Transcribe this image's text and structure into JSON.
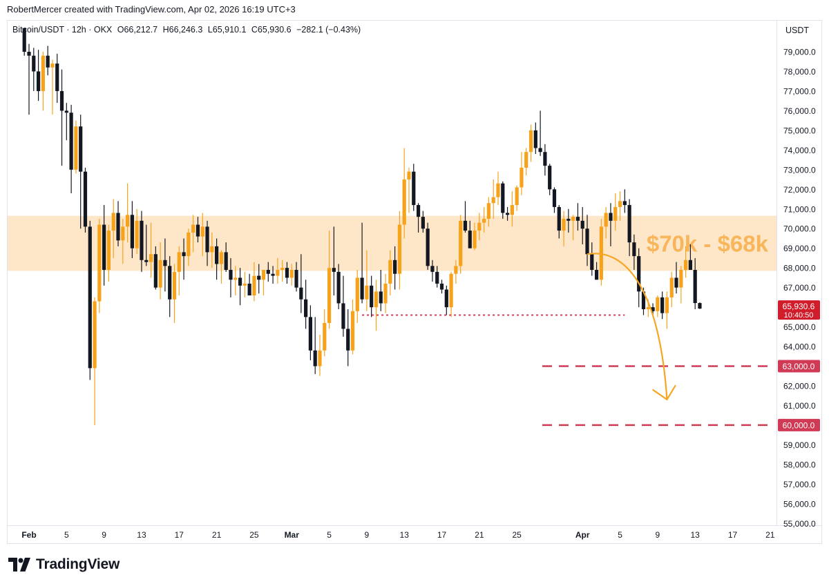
{
  "header": {
    "credit": "RobertMercer created with TradingView.com, Apr 02, 2026 16:19 UTC+3"
  },
  "symbol": {
    "name": "Bitcoin/USDT · 12h · OKX",
    "open": "O66,212.7",
    "high": "H66,246.3",
    "low": "L65,910.1",
    "close": "C65,930.6",
    "change": "−282.1 (−0.43%)"
  },
  "unit": "USDT",
  "brand": {
    "name": "TradingView"
  },
  "colors": {
    "up": "#f7a21b",
    "down": "#131722",
    "zone": "#fde7c8",
    "zone_text": "#f8b55a",
    "level": "#d13a55",
    "arrow": "#f5a623",
    "last_price_bg": "#d01c2b"
  },
  "chart_data": {
    "type": "candlestick",
    "title": "Bitcoin/USDT · 12h · OKX",
    "ylim": [
      54700,
      80200
    ],
    "y_ticks": [
      {
        "value": 79000,
        "label": "79,000.0"
      },
      {
        "value": 78000,
        "label": "78,000.0"
      },
      {
        "value": 77000,
        "label": "77,000.0"
      },
      {
        "value": 76000,
        "label": "76,000.0"
      },
      {
        "value": 75000,
        "label": "75,000.0"
      },
      {
        "value": 74000,
        "label": "74,000.0"
      },
      {
        "value": 73000,
        "label": "73,000.0"
      },
      {
        "value": 72000,
        "label": "72,000.0"
      },
      {
        "value": 71000,
        "label": "71,000.0"
      },
      {
        "value": 70000,
        "label": "70,000.0"
      },
      {
        "value": 69000,
        "label": "69,000.0"
      },
      {
        "value": 68000,
        "label": "68,000.0"
      },
      {
        "value": 67000,
        "label": "67,000.0"
      },
      {
        "value": 65000,
        "label": "65,000.0"
      },
      {
        "value": 64000,
        "label": "64,000.0"
      },
      {
        "value": 62000,
        "label": "62,000.0"
      },
      {
        "value": 61000,
        "label": "61,000.0"
      },
      {
        "value": 59000,
        "label": "59,000.0"
      },
      {
        "value": 58000,
        "label": "58,000.0"
      },
      {
        "value": 57000,
        "label": "57,000.0"
      },
      {
        "value": 56000,
        "label": "56,000.0"
      },
      {
        "value": 55000,
        "label": "55,000.0"
      }
    ],
    "x_ticks": [
      {
        "date": "2026-02-01",
        "label": "Feb",
        "bold": true
      },
      {
        "date": "2026-02-05",
        "label": "5"
      },
      {
        "date": "2026-02-09",
        "label": "9"
      },
      {
        "date": "2026-02-13",
        "label": "13"
      },
      {
        "date": "2026-02-17",
        "label": "17"
      },
      {
        "date": "2026-02-21",
        "label": "21"
      },
      {
        "date": "2026-02-25",
        "label": "25"
      },
      {
        "date": "2026-03-01",
        "label": "Mar",
        "bold": true
      },
      {
        "date": "2026-03-05",
        "label": "5"
      },
      {
        "date": "2026-03-09",
        "label": "9"
      },
      {
        "date": "2026-03-13",
        "label": "13"
      },
      {
        "date": "2026-03-17",
        "label": "17"
      },
      {
        "date": "2026-03-21",
        "label": "21"
      },
      {
        "date": "2026-03-25",
        "label": "25"
      },
      {
        "date": "2026-04-01",
        "label": "Apr",
        "bold": true
      },
      {
        "date": "2026-04-05",
        "label": "5"
      },
      {
        "date": "2026-04-09",
        "label": "9"
      },
      {
        "date": "2026-04-13",
        "label": "13"
      },
      {
        "date": "2026-04-17",
        "label": "17"
      },
      {
        "date": "2026-04-21",
        "label": "21"
      }
    ],
    "candles_start": "2026-01-31 12:00",
    "candle_interval": "12h",
    "candles": [
      [
        80200,
        80200,
        78800,
        79000
      ],
      [
        79000,
        79400,
        75800,
        78800
      ],
      [
        78800,
        79200,
        77000,
        78000
      ],
      [
        78000,
        79100,
        76500,
        77000
      ],
      [
        77000,
        79000,
        76000,
        78800
      ],
      [
        78800,
        79300,
        77800,
        78200
      ],
      [
        78200,
        78600,
        75800,
        78400
      ],
      [
        78400,
        78900,
        76400,
        77000
      ],
      [
        77000,
        78100,
        73200,
        76000
      ],
      [
        76000,
        76400,
        74500,
        75900
      ],
      [
        75900,
        76300,
        71800,
        73000
      ],
      [
        73000,
        75500,
        72800,
        75200
      ],
      [
        75200,
        75800,
        70000,
        72900
      ],
      [
        72900,
        73100,
        69800,
        70100
      ],
      [
        70100,
        70400,
        62300,
        62900
      ],
      [
        62900,
        66500,
        60000,
        66300
      ],
      [
        66300,
        70500,
        65700,
        70200
      ],
      [
        70200,
        71200,
        67100,
        67900
      ],
      [
        67900,
        70200,
        67300,
        69900
      ],
      [
        69900,
        71500,
        68500,
        70800
      ],
      [
        70800,
        71400,
        69100,
        69400
      ],
      [
        69400,
        70500,
        68200,
        70100
      ],
      [
        70100,
        72300,
        69300,
        70700
      ],
      [
        70700,
        71400,
        68500,
        69000
      ],
      [
        69000,
        71000,
        68700,
        70400
      ],
      [
        70400,
        70900,
        67800,
        68400
      ],
      [
        68400,
        70200,
        68100,
        68300
      ],
      [
        68300,
        70300,
        67500,
        68700
      ],
      [
        68700,
        69100,
        66900,
        67000
      ],
      [
        67000,
        69300,
        66400,
        68400
      ],
      [
        68400,
        69500,
        66800,
        68100
      ],
      [
        68100,
        68600,
        65500,
        66400
      ],
      [
        66400,
        68200,
        65200,
        67800
      ],
      [
        67800,
        69100,
        66600,
        68800
      ],
      [
        68800,
        69500,
        67400,
        68600
      ],
      [
        68600,
        70000,
        68100,
        69800
      ],
      [
        69800,
        70700,
        68800,
        70200
      ],
      [
        70200,
        70600,
        69300,
        69600
      ],
      [
        69600,
        70800,
        68600,
        70100
      ],
      [
        70100,
        70400,
        68100,
        68800
      ],
      [
        68800,
        69800,
        68000,
        69100
      ],
      [
        69100,
        69500,
        67400,
        68200
      ],
      [
        68200,
        68900,
        67200,
        68800
      ],
      [
        68800,
        69300,
        67800,
        67900
      ],
      [
        67900,
        68500,
        66500,
        67400
      ],
      [
        67400,
        68100,
        66600,
        67500
      ],
      [
        67500,
        68000,
        66100,
        67100
      ],
      [
        67100,
        67800,
        66500,
        67200
      ],
      [
        67200,
        67700,
        66700,
        66600
      ],
      [
        66600,
        68300,
        66300,
        67600
      ],
      [
        67600,
        68200,
        66700,
        67400
      ],
      [
        67400,
        67900,
        66600,
        67900
      ],
      [
        67900,
        68300,
        67300,
        67700
      ],
      [
        67700,
        68100,
        67200,
        67600
      ],
      [
        67600,
        68500,
        67200,
        67900
      ],
      [
        67900,
        68400,
        67300,
        68000
      ],
      [
        68000,
        68300,
        67200,
        67500
      ],
      [
        67500,
        68200,
        67100,
        67900
      ],
      [
        67900,
        68300,
        66800,
        67000
      ],
      [
        67000,
        68700,
        65700,
        66400
      ],
      [
        66400,
        67400,
        64900,
        65500
      ],
      [
        65500,
        66100,
        63300,
        63800
      ],
      [
        63800,
        65500,
        62600,
        63000
      ],
      [
        63000,
        64600,
        62500,
        63800
      ],
      [
        63800,
        65900,
        63500,
        65200
      ],
      [
        65200,
        69900,
        64900,
        68000
      ],
      [
        68000,
        70100,
        66600,
        67800
      ],
      [
        67800,
        68200,
        65900,
        66200
      ],
      [
        66200,
        67600,
        64500,
        64900
      ],
      [
        64900,
        65900,
        63000,
        63800
      ],
      [
        63800,
        66400,
        63600,
        65800
      ],
      [
        65800,
        67900,
        65200,
        67500
      ],
      [
        67500,
        70300,
        66200,
        66400
      ],
      [
        66400,
        68900,
        65800,
        67100
      ],
      [
        67100,
        67600,
        65500,
        66000
      ],
      [
        66000,
        67400,
        64800,
        66800
      ],
      [
        66800,
        67900,
        65800,
        66200
      ],
      [
        66200,
        67700,
        65700,
        67200
      ],
      [
        67200,
        68900,
        66600,
        68400
      ],
      [
        68400,
        69100,
        66900,
        67700
      ],
      [
        67700,
        70900,
        66900,
        70200
      ],
      [
        70200,
        74100,
        69500,
        72500
      ],
      [
        72500,
        73100,
        70800,
        72900
      ],
      [
        72900,
        73300,
        70900,
        71200
      ],
      [
        71200,
        71300,
        69800,
        70600
      ],
      [
        70600,
        70900,
        69800,
        70000
      ],
      [
        70000,
        70300,
        67900,
        68100
      ],
      [
        68100,
        68400,
        67300,
        67800
      ],
      [
        67800,
        68100,
        67000,
        67200
      ],
      [
        67200,
        67400,
        66700,
        66900
      ],
      [
        66900,
        67100,
        65600,
        66000
      ],
      [
        66000,
        67800,
        65500,
        67700
      ],
      [
        67700,
        68400,
        67200,
        68100
      ],
      [
        68100,
        70700,
        67700,
        70400
      ],
      [
        70400,
        71400,
        69800,
        69900
      ],
      [
        69900,
        70400,
        69000,
        69000
      ],
      [
        69000,
        70300,
        68900,
        69900
      ],
      [
        69900,
        70800,
        69400,
        70300
      ],
      [
        70300,
        71100,
        69800,
        70500
      ],
      [
        70500,
        71600,
        70100,
        71300
      ],
      [
        71300,
        72500,
        70500,
        71600
      ],
      [
        71600,
        72900,
        71200,
        72300
      ],
      [
        72300,
        72400,
        70500,
        70800
      ],
      [
        70800,
        71100,
        70400,
        70700
      ],
      [
        70700,
        71900,
        70100,
        71200
      ],
      [
        71200,
        72200,
        70900,
        72100
      ],
      [
        72100,
        73900,
        71700,
        73100
      ],
      [
        73100,
        74100,
        72700,
        73900
      ],
      [
        73900,
        75300,
        73400,
        75000
      ],
      [
        75000,
        75400,
        73800,
        74100
      ],
      [
        74100,
        76000,
        73700,
        73900
      ],
      [
        73900,
        74300,
        72700,
        73200
      ],
      [
        73200,
        73300,
        71700,
        72000
      ],
      [
        72000,
        72100,
        70800,
        71100
      ],
      [
        71100,
        71200,
        69500,
        69900
      ],
      [
        69900,
        70900,
        69100,
        70500
      ],
      [
        70500,
        71000,
        69800,
        70400
      ],
      [
        70400,
        70700,
        69400,
        70600
      ],
      [
        70600,
        71300,
        69900,
        70400
      ],
      [
        70400,
        71100,
        69200,
        70000
      ],
      [
        70000,
        70700,
        68100,
        68700
      ],
      [
        68700,
        69300,
        67600,
        67900
      ],
      [
        67900,
        68300,
        67400,
        67400
      ],
      [
        67400,
        70500,
        67100,
        70100
      ],
      [
        70100,
        71100,
        69500,
        70800
      ],
      [
        70800,
        71300,
        69100,
        70400
      ],
      [
        70400,
        71800,
        69900,
        71100
      ],
      [
        71100,
        71900,
        70400,
        71400
      ],
      [
        71400,
        72000,
        70800,
        71200
      ],
      [
        71200,
        71500,
        68600,
        69300
      ],
      [
        69300,
        69700,
        67900,
        68600
      ],
      [
        68600,
        69000,
        66000,
        66800
      ],
      [
        66800,
        67000,
        65600,
        65900
      ],
      [
        65900,
        66400,
        65500,
        66000
      ],
      [
        66000,
        66200,
        65600,
        65800
      ],
      [
        65800,
        66600,
        65500,
        66500
      ],
      [
        66500,
        66800,
        65400,
        65700
      ],
      [
        65700,
        66800,
        64900,
        66500
      ],
      [
        66500,
        67800,
        66000,
        67500
      ],
      [
        67500,
        68300,
        66700,
        67000
      ],
      [
        67000,
        68100,
        66200,
        67900
      ],
      [
        67900,
        69100,
        67500,
        68400
      ],
      [
        68400,
        69200,
        67900,
        67900
      ],
      [
        67900,
        68500,
        65900,
        66212.7
      ],
      [
        66212.7,
        66246.3,
        65910.1,
        65930.6
      ]
    ],
    "zone": {
      "low": 67850,
      "high": 70650,
      "label": "$70k - $68k"
    },
    "support_line": {
      "value": 65600,
      "from": "2026-03-08 12:00",
      "to": "2026-04-05 12:00"
    },
    "target_levels": [
      {
        "value": 63000,
        "label": "63,000.0"
      },
      {
        "value": 60000,
        "label": "60,000.0"
      }
    ],
    "last_price": {
      "value": 65930.6,
      "label": "65,930.6",
      "countdown": "10:40:50"
    },
    "projection": {
      "from": {
        "date": "2026-04-01 12:00",
        "price": 68700
      },
      "to": {
        "date": "2026-04-10 00:00",
        "price": 61300
      }
    }
  }
}
